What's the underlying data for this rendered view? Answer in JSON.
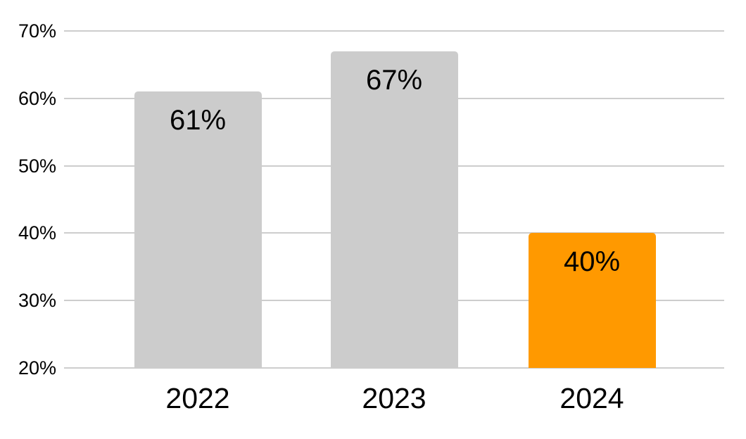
{
  "chart_data": {
    "type": "bar",
    "title": "",
    "xlabel": "",
    "ylabel": "",
    "categories": [
      "2022",
      "2023",
      "2024"
    ],
    "values": [
      61,
      67,
      40
    ],
    "bar_labels": [
      "61%",
      "67%",
      "40%"
    ],
    "bar_colors": [
      "#cccccc",
      "#cccccc",
      "#ff9900"
    ],
    "default_bar_color": "#cccccc",
    "highlight_color": "#ff9900",
    "ylim": [
      20,
      70
    ],
    "yticks": [
      20,
      30,
      40,
      50,
      60,
      70
    ],
    "ytick_labels": [
      "20%",
      "30%",
      "40%",
      "50%",
      "60%",
      "70%"
    ],
    "grid": true,
    "gridline_color": "#cdcdcd",
    "text_color": "#000000",
    "background_color": "#ffffff",
    "legend_position": "none"
  }
}
